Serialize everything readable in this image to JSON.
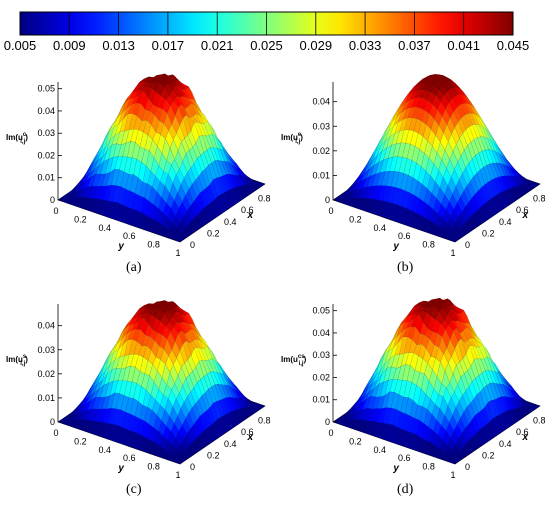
{
  "chart_data": {
    "type": "surface",
    "colorbar": {
      "ticks": [
        "0.005",
        "0.009",
        "0.013",
        "0.017",
        "0.021",
        "0.025",
        "0.029",
        "0.033",
        "0.037",
        "0.041",
        "0.045"
      ],
      "range": [
        0.005,
        0.045
      ],
      "colormap": "jet"
    },
    "panels": [
      {
        "id": "a",
        "caption": "(a)",
        "zlabel": "Im(u",
        "zlabel_sub": "i,j",
        "zlabel_sup": "c",
        "zticks": [
          "0",
          "0.01",
          "0.02",
          "0.03",
          "0.04",
          "0.05"
        ],
        "zmax": 0.053,
        "ylabel": "y",
        "xlabel": "x",
        "yticks": [
          "0",
          "0.2",
          "0.4",
          "0.6",
          "0.8",
          "1"
        ],
        "xticks": [
          "0",
          "0.2",
          "0.4",
          "0.6",
          "0.8",
          "1"
        ],
        "surface": "rough",
        "peak": 0.053,
        "noise": 0.09
      },
      {
        "id": "b",
        "caption": "(b)",
        "zlabel": "Im(u",
        "zlabel_sub": "i,j",
        "zlabel_sup": "e",
        "zticks": [
          "0",
          "0.01",
          "0.02",
          "0.03",
          "0.04"
        ],
        "zmax": 0.048,
        "ylabel": "y",
        "xlabel": "x",
        "yticks": [
          "0",
          "0.2",
          "0.4",
          "0.6",
          "0.8",
          "1"
        ],
        "xticks": [
          "0",
          "0.2",
          "0.4",
          "0.6",
          "0.8",
          "1"
        ],
        "surface": "smooth",
        "peak": 0.047,
        "noise": 0.0
      },
      {
        "id": "c",
        "caption": "(c)",
        "zlabel": "Im(u",
        "zlabel_sub": "i,j",
        "zlabel_sup": "s",
        "zticks": [
          "0",
          "0.01",
          "0.02",
          "0.03",
          "0.04"
        ],
        "zmax": 0.049,
        "ylabel": "y",
        "xlabel": "x",
        "yticks": [
          "0",
          "0.2",
          "0.4",
          "0.6",
          "0.8",
          "1"
        ],
        "xticks": [
          "0",
          "0.2",
          "0.4",
          "0.6",
          "0.8",
          "1"
        ],
        "surface": "rough",
        "peak": 0.047,
        "noise": 0.08
      },
      {
        "id": "d",
        "caption": "(d)",
        "zlabel": "Im(u",
        "zlabel_sub": "i,j",
        "zlabel_sup": "cs",
        "zticks": [
          "0",
          "0.01",
          "0.02",
          "0.03",
          "0.04",
          "0.05"
        ],
        "zmax": 0.053,
        "ylabel": "y",
        "xlabel": "x",
        "yticks": [
          "0",
          "0.2",
          "0.4",
          "0.6",
          "0.8",
          "1"
        ],
        "xticks": [
          "0",
          "0.2",
          "0.4",
          "0.6",
          "0.8",
          "1"
        ],
        "surface": "rough",
        "peak": 0.052,
        "noise": 0.1
      }
    ]
  }
}
